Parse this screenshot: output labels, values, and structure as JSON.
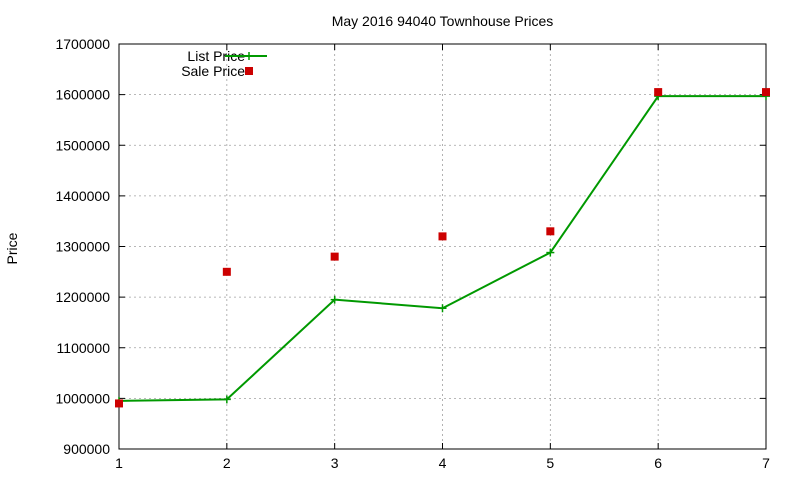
{
  "chart_data": {
    "type": "line",
    "title": "May 2016 94040 Townhouse Prices",
    "xlabel": "",
    "ylabel": "Price",
    "x_ticks": [
      1,
      2,
      3,
      4,
      5,
      6,
      7
    ],
    "y_ticks": [
      900000,
      1000000,
      1100000,
      1200000,
      1300000,
      1400000,
      1500000,
      1600000,
      1700000
    ],
    "xlim": [
      1,
      7
    ],
    "ylim": [
      900000,
      1700000
    ],
    "grid": true,
    "legend_position": "top-left",
    "series": [
      {
        "name": "List Price",
        "style": "line-with-plus-markers",
        "color": "#009900",
        "x": [
          1,
          2,
          3,
          4,
          5,
          6,
          7
        ],
        "y": [
          995000,
          998000,
          1195000,
          1178000,
          1288000,
          1597000,
          1597000
        ]
      },
      {
        "name": "Sale Price",
        "style": "square-markers",
        "color": "#cc0000",
        "x": [
          1,
          2,
          3,
          4,
          5,
          6,
          7
        ],
        "y": [
          990000,
          1250000,
          1280000,
          1320000,
          1330000,
          1605000,
          1605000
        ]
      }
    ]
  }
}
